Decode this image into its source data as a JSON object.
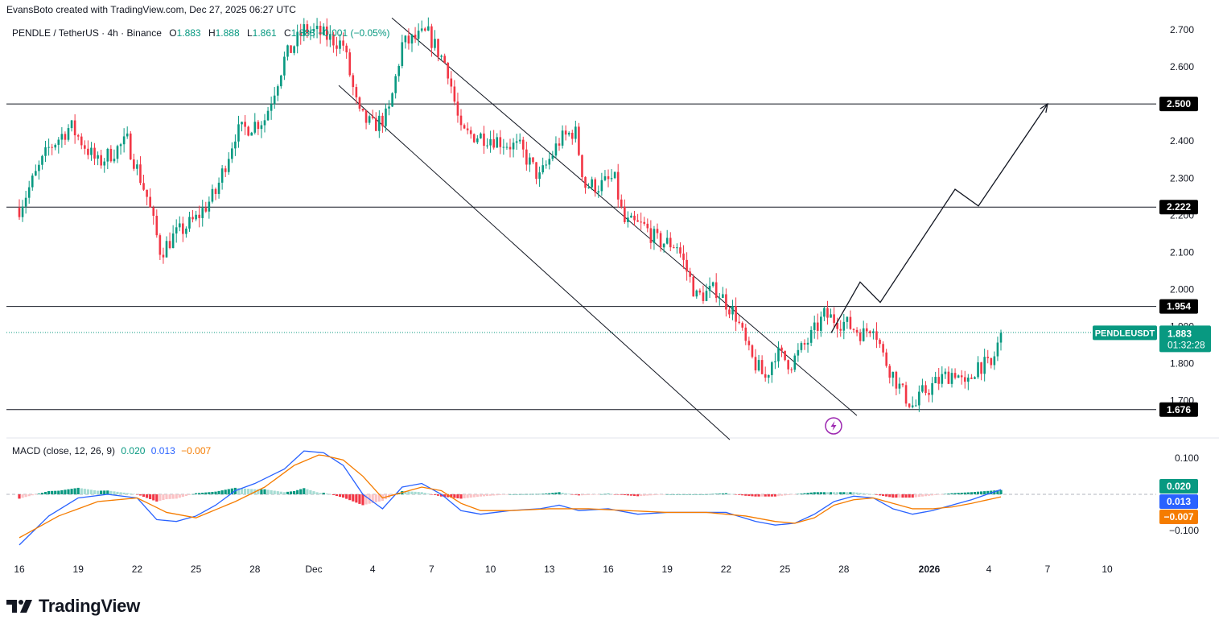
{
  "caption": "EvansBoto created with TradingView.com, Dec 27, 2025 06:27 UTC",
  "legend": {
    "symbol": "PENDLE / TetherUS · 4h · Binance",
    "open_label": "O",
    "open": "1.883",
    "high_label": "H",
    "high": "1.888",
    "low_label": "L",
    "low": "1.861",
    "close_label": "C",
    "close": "1.883",
    "change": "−0.001 (−0.05%)"
  },
  "macd_legend": {
    "label": "MACD (close, 12, 26, 9)",
    "histogram": "0.020",
    "macd": "0.013",
    "signal": "−0.007"
  },
  "branding": {
    "logo_text": "TradingView"
  },
  "colors": {
    "up": "#089981",
    "down": "#f23645",
    "up_light": "#a6dcd3",
    "down_light": "#fbc2c5",
    "macd_line": "#2962ff",
    "signal_line": "#f57c00",
    "price_tag": "#089981",
    "level_tag": "#000000",
    "lightning": "#9c27b0"
  },
  "chart_data": [
    {
      "type": "candlestick",
      "symbol": "PENDLEUSDT",
      "timeframe": "4h",
      "y_ticks": [
        "2.700",
        "2.600",
        "2.500",
        "2.400",
        "2.300",
        "2.200",
        "2.100",
        "2.000",
        "1.900",
        "1.800",
        "1.700"
      ],
      "ylim": [
        1.6,
        2.74
      ],
      "x_ticks": [
        "16",
        "19",
        "22",
        "25",
        "28",
        "Dec",
        "4",
        "7",
        "10",
        "13",
        "16",
        "19",
        "22",
        "25",
        "28",
        "2026",
        "4",
        "7",
        "10"
      ],
      "horizontal_levels": [
        2.5,
        2.222,
        1.954,
        1.676
      ],
      "level_labels": [
        "2.500",
        "2.222",
        "1.954",
        "1.676"
      ],
      "current_price": {
        "symbol_tag": "PENDLEUSDT",
        "value": 1.883,
        "label": "1.883",
        "countdown": "01:32:28"
      },
      "path_points": [
        {
          "x": "Dec 26 12:00",
          "y": 1.883
        },
        {
          "x": "Dec 27 12:00",
          "y": 2.02
        },
        {
          "x": "Dec 28 12:00",
          "y": 1.965
        },
        {
          "x": "Jan 2",
          "y": 2.27
        },
        {
          "x": "Jan 3 08:00",
          "y": 2.225
        },
        {
          "x": "Jan 7",
          "y": 2.5
        }
      ],
      "close_path": [
        {
          "d": 0,
          "c": 2.22
        },
        {
          "d": 1.5,
          "c": 2.38
        },
        {
          "d": 2.6,
          "c": 2.44
        },
        {
          "d": 4,
          "c": 2.34
        },
        {
          "d": 5.5,
          "c": 2.4
        },
        {
          "d": 6.5,
          "c": 2.25
        },
        {
          "d": 7.2,
          "c": 2.1
        },
        {
          "d": 7.8,
          "c": 2.14
        },
        {
          "d": 9,
          "c": 2.19
        },
        {
          "d": 10,
          "c": 2.26
        },
        {
          "d": 11,
          "c": 2.42
        },
        {
          "d": 12.5,
          "c": 2.46
        },
        {
          "d": 13.5,
          "c": 2.62
        },
        {
          "d": 14.5,
          "c": 2.7
        },
        {
          "d": 15.3,
          "c": 2.69
        },
        {
          "d": 16.5,
          "c": 2.66
        },
        {
          "d": 17.3,
          "c": 2.47
        },
        {
          "d": 18,
          "c": 2.44
        },
        {
          "d": 18.8,
          "c": 2.47
        },
        {
          "d": 19.5,
          "c": 2.66
        },
        {
          "d": 20.8,
          "c": 2.69
        },
        {
          "d": 21.8,
          "c": 2.6
        },
        {
          "d": 22.5,
          "c": 2.42
        },
        {
          "d": 24,
          "c": 2.41
        },
        {
          "d": 25.5,
          "c": 2.38
        },
        {
          "d": 26.5,
          "c": 2.3
        },
        {
          "d": 27.5,
          "c": 2.4
        },
        {
          "d": 28.3,
          "c": 2.43
        },
        {
          "d": 28.8,
          "c": 2.28
        },
        {
          "d": 29.6,
          "c": 2.28
        },
        {
          "d": 30.3,
          "c": 2.3
        },
        {
          "d": 30.8,
          "c": 2.18
        },
        {
          "d": 31.8,
          "c": 2.17
        },
        {
          "d": 32.5,
          "c": 2.13
        },
        {
          "d": 33.5,
          "c": 2.12
        },
        {
          "d": 34.5,
          "c": 1.98
        },
        {
          "d": 35.5,
          "c": 2.0
        },
        {
          "d": 36.5,
          "c": 1.93
        },
        {
          "d": 37.2,
          "c": 1.82
        },
        {
          "d": 38,
          "c": 1.76
        },
        {
          "d": 38.5,
          "c": 1.83
        },
        {
          "d": 39.3,
          "c": 1.8
        },
        {
          "d": 40.3,
          "c": 1.87
        },
        {
          "d": 41,
          "c": 1.93
        },
        {
          "d": 42,
          "c": 1.91
        },
        {
          "d": 43,
          "c": 1.88
        },
        {
          "d": 43.5,
          "c": 1.91
        },
        {
          "d": 44,
          "c": 1.82
        },
        {
          "d": 45,
          "c": 1.72
        },
        {
          "d": 45.6,
          "c": 1.68
        },
        {
          "d": 46,
          "c": 1.72
        },
        {
          "d": 47,
          "c": 1.76
        },
        {
          "d": 47.7,
          "c": 1.78
        },
        {
          "d": 48.2,
          "c": 1.73
        },
        {
          "d": 48.8,
          "c": 1.8
        },
        {
          "d": 49.5,
          "c": 1.79
        },
        {
          "d": 50,
          "c": 1.883
        }
      ],
      "annotations": [
        "upper channel line",
        "lower channel line",
        "projected path arrow",
        "lightning marker"
      ]
    },
    {
      "type": "macd",
      "params": "close, 12, 26, 9",
      "y_ticks": [
        "0.100",
        "-0.100"
      ],
      "ylim": [
        -0.145,
        0.14
      ],
      "last": {
        "histogram": 0.02,
        "macd": 0.013,
        "signal": -0.007
      },
      "macd_path": [
        {
          "d": 0,
          "v": -0.14
        },
        {
          "d": 1.5,
          "v": -0.06
        },
        {
          "d": 3,
          "v": -0.01
        },
        {
          "d": 4.5,
          "v": 0.0
        },
        {
          "d": 6,
          "v": -0.01
        },
        {
          "d": 7,
          "v": -0.07
        },
        {
          "d": 8,
          "v": -0.075
        },
        {
          "d": 9,
          "v": -0.06
        },
        {
          "d": 10,
          "v": -0.03
        },
        {
          "d": 11,
          "v": 0.01
        },
        {
          "d": 12,
          "v": 0.03
        },
        {
          "d": 13.5,
          "v": 0.07
        },
        {
          "d": 14.5,
          "v": 0.12
        },
        {
          "d": 15.5,
          "v": 0.115
        },
        {
          "d": 16.5,
          "v": 0.08
        },
        {
          "d": 17.5,
          "v": 0.0
        },
        {
          "d": 18.5,
          "v": -0.04
        },
        {
          "d": 19.5,
          "v": 0.02
        },
        {
          "d": 20.5,
          "v": 0.03
        },
        {
          "d": 21.5,
          "v": 0.0
        },
        {
          "d": 22.5,
          "v": -0.045
        },
        {
          "d": 23.5,
          "v": -0.055
        },
        {
          "d": 25,
          "v": -0.045
        },
        {
          "d": 26.5,
          "v": -0.04
        },
        {
          "d": 27.5,
          "v": -0.03
        },
        {
          "d": 28.5,
          "v": -0.045
        },
        {
          "d": 30,
          "v": -0.04
        },
        {
          "d": 31.5,
          "v": -0.055
        },
        {
          "d": 33,
          "v": -0.05
        },
        {
          "d": 34.5,
          "v": -0.05
        },
        {
          "d": 36,
          "v": -0.05
        },
        {
          "d": 37.5,
          "v": -0.075
        },
        {
          "d": 38.5,
          "v": -0.085
        },
        {
          "d": 39.5,
          "v": -0.08
        },
        {
          "d": 40.5,
          "v": -0.055
        },
        {
          "d": 41.5,
          "v": -0.02
        },
        {
          "d": 42.5,
          "v": -0.005
        },
        {
          "d": 43.5,
          "v": -0.01
        },
        {
          "d": 44.5,
          "v": -0.04
        },
        {
          "d": 45.5,
          "v": -0.055
        },
        {
          "d": 46.5,
          "v": -0.045
        },
        {
          "d": 47.5,
          "v": -0.03
        },
        {
          "d": 48.5,
          "v": -0.015
        },
        {
          "d": 49.3,
          "v": 0.0
        },
        {
          "d": 50,
          "v": 0.013
        }
      ],
      "signal_path": [
        {
          "d": 0,
          "v": -0.12
        },
        {
          "d": 2,
          "v": -0.06
        },
        {
          "d": 4,
          "v": -0.02
        },
        {
          "d": 6,
          "v": -0.01
        },
        {
          "d": 7.5,
          "v": -0.05
        },
        {
          "d": 9,
          "v": -0.065
        },
        {
          "d": 11,
          "v": -0.02
        },
        {
          "d": 12.5,
          "v": 0.02
        },
        {
          "d": 14,
          "v": 0.08
        },
        {
          "d": 15.3,
          "v": 0.11
        },
        {
          "d": 16.5,
          "v": 0.095
        },
        {
          "d": 17.5,
          "v": 0.05
        },
        {
          "d": 18.5,
          "v": -0.01
        },
        {
          "d": 19.5,
          "v": 0.005
        },
        {
          "d": 20.5,
          "v": 0.02
        },
        {
          "d": 21.5,
          "v": 0.01
        },
        {
          "d": 22.5,
          "v": -0.025
        },
        {
          "d": 23.5,
          "v": -0.045
        },
        {
          "d": 25,
          "v": -0.045
        },
        {
          "d": 27,
          "v": -0.04
        },
        {
          "d": 29,
          "v": -0.04
        },
        {
          "d": 31,
          "v": -0.045
        },
        {
          "d": 33,
          "v": -0.05
        },
        {
          "d": 35,
          "v": -0.05
        },
        {
          "d": 37,
          "v": -0.06
        },
        {
          "d": 38.5,
          "v": -0.075
        },
        {
          "d": 39.5,
          "v": -0.08
        },
        {
          "d": 40.5,
          "v": -0.065
        },
        {
          "d": 41.5,
          "v": -0.03
        },
        {
          "d": 42.5,
          "v": -0.015
        },
        {
          "d": 43.5,
          "v": -0.01
        },
        {
          "d": 44.5,
          "v": -0.025
        },
        {
          "d": 45.5,
          "v": -0.04
        },
        {
          "d": 46.5,
          "v": -0.04
        },
        {
          "d": 47.5,
          "v": -0.035
        },
        {
          "d": 48.5,
          "v": -0.025
        },
        {
          "d": 50,
          "v": -0.007
        }
      ]
    }
  ]
}
